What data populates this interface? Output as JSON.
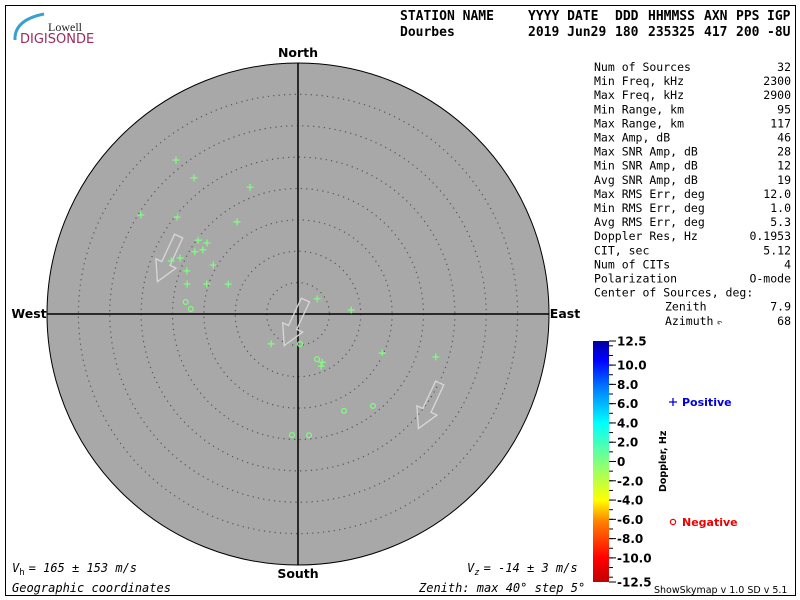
{
  "logo": {
    "line1": "Lowell",
    "line2": "DIGISONDE"
  },
  "header": {
    "labels": [
      "STATION NAME",
      "YYYY DATE",
      "DDD",
      "HHMMSS",
      "AXN",
      "PPS",
      "IGP"
    ],
    "values": [
      "Dourbes",
      "2019 Jun29",
      "180",
      "235325",
      "417",
      "200",
      "-8U"
    ]
  },
  "stats": [
    {
      "label": "Num of Sources",
      "value": "32"
    },
    {
      "label": "Min Freq, kHz",
      "value": "2300"
    },
    {
      "label": "Max Freq, kHz",
      "value": "2900"
    },
    {
      "label": "Min Range, km",
      "value": "95"
    },
    {
      "label": "Max Range, km",
      "value": "117"
    },
    {
      "label": "Max Amp, dB",
      "value": "46"
    },
    {
      "label": "Max SNR Amp, dB",
      "value": "28"
    },
    {
      "label": "Min SNR Amp, dB",
      "value": "12"
    },
    {
      "label": "Avg SNR Amp, dB",
      "value": "19"
    },
    {
      "label": "Max RMS Err, deg",
      "value": "12.0"
    },
    {
      "label": "Min RMS Err, deg",
      "value": "1.0"
    },
    {
      "label": "Avg RMS Err, deg",
      "value": "5.3"
    },
    {
      "label": "Doppler Res, Hz",
      "value": "0.1953"
    },
    {
      "label": "CIT, sec",
      "value": "5.12"
    },
    {
      "label": "Num of CITs",
      "value": "4"
    },
    {
      "label": "Polarization",
      "value": "O-mode"
    },
    {
      "label": "Center of Sources, deg:",
      "value": ""
    },
    {
      "label": "Zenith",
      "value": "7.9"
    },
    {
      "label": "Azimuth",
      "value": "68"
    }
  ],
  "footer": {
    "vh": "= 165 ± 153 m/s",
    "vz": "= -14 ± 3 m/s",
    "coords": "Geographic coordinates",
    "zenith_info": "Zenith: max 40°  step 5°",
    "version": "ShowSkymap v 1.0   SD v 5.1"
  },
  "chart_data": {
    "type": "scatter",
    "projection": "polar skymap (zenith radial, azimuth clockwise from North)",
    "compass": {
      "north": "North",
      "south": "South",
      "east": "East",
      "west": "West"
    },
    "zenith_max_deg": 40,
    "zenith_step_deg": 5,
    "grid": true,
    "colors": {
      "plot_bg": "#a8a8a8",
      "point": "#80ff80",
      "arrow": "#d8d8d8",
      "positive": "#0000dd",
      "negative": "#ee0000"
    },
    "colorbar": {
      "label": "Doppler, Hz",
      "min": -12.5,
      "max": 12.5,
      "ticks": [
        "12.5",
        "10.0",
        "8.0",
        "6.0",
        "4.0",
        "2.0",
        "0",
        "-2.0",
        "-4.0",
        "-6.0",
        "-8.0",
        "-10.0",
        "-12.5"
      ]
    },
    "legend": {
      "positive": "Positive",
      "negative": "Negative",
      "placement": "right"
    },
    "points": [
      {
        "zenith": 31.3,
        "azimuth": 321.6,
        "sign": "+"
      },
      {
        "zenith": 27.3,
        "azimuth": 322.6,
        "sign": "+"
      },
      {
        "zenith": 21.6,
        "azimuth": 339.3,
        "sign": "+"
      },
      {
        "zenith": 29.6,
        "azimuth": 302.2,
        "sign": "+"
      },
      {
        "zenith": 24.7,
        "azimuth": 308.7,
        "sign": "+"
      },
      {
        "zenith": 17.6,
        "azimuth": 326.5,
        "sign": "+"
      },
      {
        "zenith": 19.8,
        "azimuth": 306.5,
        "sign": "+"
      },
      {
        "zenith": 18.4,
        "azimuth": 308.0,
        "sign": "+"
      },
      {
        "zenith": 18.3,
        "azimuth": 304.0,
        "sign": "+"
      },
      {
        "zenith": 19.2,
        "azimuth": 301.1,
        "sign": "+"
      },
      {
        "zenith": 20.8,
        "azimuth": 295.4,
        "sign": "+"
      },
      {
        "zenith": 21.9,
        "azimuth": 292.7,
        "sign": "+"
      },
      {
        "zenith": 15.6,
        "azimuth": 300.0,
        "sign": "+"
      },
      {
        "zenith": 19.0,
        "azimuth": 291.2,
        "sign": "+"
      },
      {
        "zenith": 18.3,
        "azimuth": 285.1,
        "sign": "+"
      },
      {
        "zenith": 15.3,
        "azimuth": 288.2,
        "sign": "+"
      },
      {
        "zenith": 12.1,
        "azimuth": 293.2,
        "sign": "+"
      },
      {
        "zenith": 18.0,
        "azimuth": 276.1,
        "sign": "-"
      },
      {
        "zenith": 17.1,
        "azimuth": 272.7,
        "sign": "-"
      },
      {
        "zenith": 3.9,
        "azimuth": 51.7,
        "sign": "+"
      },
      {
        "zenith": 8.5,
        "azimuth": 85.7,
        "sign": "+"
      },
      {
        "zenith": 6.4,
        "azimuth": 222.0,
        "sign": "+"
      },
      {
        "zenith": 4.8,
        "azimuth": 176.2,
        "sign": "-"
      },
      {
        "zenith": 7.8,
        "azimuth": 157.1,
        "sign": "-"
      },
      {
        "zenith": 8.6,
        "azimuth": 153.4,
        "sign": "+"
      },
      {
        "zenith": 9.1,
        "azimuth": 156.1,
        "sign": "+"
      },
      {
        "zenith": 14.8,
        "azimuth": 114.9,
        "sign": "+"
      },
      {
        "zenith": 23.0,
        "azimuth": 107.3,
        "sign": "+"
      },
      {
        "zenith": 18.9,
        "azimuth": 140.8,
        "sign": "-"
      },
      {
        "zenith": 17.1,
        "azimuth": 154.6,
        "sign": "-"
      },
      {
        "zenith": 19.3,
        "azimuth": 182.8,
        "sign": "-"
      },
      {
        "zenith": 19.4,
        "azimuth": 174.8,
        "sign": "-"
      }
    ],
    "velocity_arrows": [
      {
        "zenith": 22.5,
        "azimuth": 293,
        "direction_deg": 205,
        "length_deg": 8
      },
      {
        "zenith": 1.5,
        "azimuth": 200,
        "direction_deg": 205,
        "length_deg": 8
      },
      {
        "zenith": 25.5,
        "azimuth": 125,
        "direction_deg": 205,
        "length_deg": 8
      }
    ]
  }
}
